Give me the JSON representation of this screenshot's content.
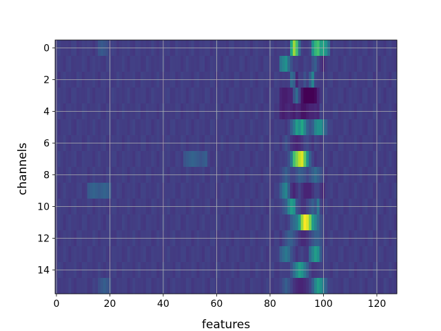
{
  "chart_data": {
    "type": "heatmap",
    "xlabel": "features",
    "ylabel": "channels",
    "n_features": 128,
    "n_channels": 16,
    "xlim": [
      -0.5,
      127.5
    ],
    "ylim": [
      15.5,
      -0.5
    ],
    "x_ticks": [
      0,
      20,
      40,
      60,
      80,
      100,
      120
    ],
    "y_ticks": [
      0,
      2,
      4,
      6,
      8,
      10,
      12,
      14
    ],
    "grid": true,
    "colormap": "viridis",
    "value_range": [
      0,
      1
    ],
    "background_value": 0.18,
    "colormap_stops": [
      "#440154",
      "#482475",
      "#414487",
      "#355f8d",
      "#2a788e",
      "#21918c",
      "#22a884",
      "#44bf70",
      "#7ad151",
      "#bddf26",
      "#fde725"
    ],
    "hotspots": [
      {
        "channel": 0,
        "features": [
          88,
          89,
          90,
          91
        ],
        "values": [
          0.6,
          0.85,
          0.7,
          0.35
        ]
      },
      {
        "channel": 0,
        "features": [
          96,
          97,
          98,
          99,
          100,
          101,
          102
        ],
        "values": [
          0.5,
          0.65,
          0.7,
          0.55,
          0.6,
          0.5,
          0.35
        ]
      },
      {
        "channel": 1,
        "features": [
          84,
          85,
          86,
          87,
          88,
          96,
          97,
          98,
          99,
          100
        ],
        "values": [
          0.4,
          0.45,
          0.5,
          0.35,
          0.25,
          0.25,
          0.3,
          0.2,
          0.15,
          0.1
        ]
      },
      {
        "channel": 2,
        "features": [
          88,
          89,
          90,
          93,
          95,
          96,
          97
        ],
        "values": [
          0.35,
          0.3,
          0.1,
          0.25,
          0.3,
          0.45,
          0.2
        ]
      },
      {
        "channel": 3,
        "features": [
          84,
          85,
          86,
          87,
          88,
          89,
          90,
          91,
          92,
          93,
          94,
          95,
          96,
          97,
          98
        ],
        "values": [
          0.1,
          0.08,
          0.08,
          0.1,
          0.1,
          0.25,
          0.35,
          0.2,
          0.05,
          0.0,
          0.0,
          0.0,
          0.0,
          0.02,
          0.1
        ]
      },
      {
        "channel": 4,
        "features": [
          84,
          85,
          86,
          87,
          88,
          89,
          90,
          91,
          92,
          93,
          94,
          95,
          96,
          97,
          98
        ],
        "values": [
          0.1,
          0.08,
          0.1,
          0.12,
          0.1,
          0.08,
          0.12,
          0.1,
          0.05,
          0.05,
          0.08,
          0.1,
          0.1,
          0.12,
          0.1
        ]
      },
      {
        "channel": 5,
        "features": [
          87,
          88,
          89,
          90,
          91,
          92,
          93,
          94,
          95,
          96,
          97,
          98,
          99,
          100,
          101,
          102
        ],
        "values": [
          0.2,
          0.3,
          0.4,
          0.55,
          0.5,
          0.6,
          0.45,
          0.3,
          0.25,
          0.3,
          0.45,
          0.5,
          0.5,
          0.4,
          0.3,
          0.2
        ]
      },
      {
        "channel": 6,
        "features": [
          85,
          86,
          87,
          88,
          89,
          90,
          91,
          92,
          93,
          94,
          95,
          96,
          97
        ],
        "values": [
          0.2,
          0.25,
          0.2,
          0.15,
          0.12,
          0.1,
          0.12,
          0.15,
          0.2,
          0.22,
          0.18,
          0.15,
          0.2
        ]
      },
      {
        "channel": 7,
        "features": [
          87,
          88,
          89,
          90,
          91,
          92,
          93,
          94,
          95,
          96,
          97
        ],
        "values": [
          0.25,
          0.4,
          0.7,
          0.8,
          0.9,
          0.95,
          0.75,
          0.5,
          0.3,
          0.2,
          0.15
        ]
      },
      {
        "channel": 8,
        "features": [
          84,
          85,
          86,
          87,
          88,
          89,
          90,
          91,
          92,
          93,
          94,
          95,
          96,
          97,
          98,
          99,
          100
        ],
        "values": [
          0.2,
          0.25,
          0.3,
          0.25,
          0.2,
          0.2,
          0.25,
          0.3,
          0.28,
          0.25,
          0.2,
          0.25,
          0.3,
          0.35,
          0.3,
          0.25,
          0.2
        ]
      },
      {
        "channel": 9,
        "features": [
          84,
          85,
          86,
          87,
          88,
          89,
          90,
          91,
          92,
          93,
          94,
          95,
          96,
          97,
          98,
          99,
          100
        ],
        "values": [
          0.3,
          0.4,
          0.45,
          0.3,
          0.15,
          0.1,
          0.15,
          0.2,
          0.15,
          0.1,
          0.1,
          0.1,
          0.15,
          0.2,
          0.2,
          0.15,
          0.1
        ]
      },
      {
        "channel": 10,
        "features": [
          84,
          85,
          86,
          87,
          88,
          89,
          90,
          91,
          92,
          93,
          94,
          95,
          96,
          97,
          98,
          99,
          100
        ],
        "values": [
          0.2,
          0.25,
          0.3,
          0.45,
          0.55,
          0.5,
          0.25,
          0.2,
          0.15,
          0.15,
          0.2,
          0.25,
          0.3,
          0.25,
          0.4,
          0.2,
          0.15
        ]
      },
      {
        "channel": 11,
        "features": [
          87,
          88,
          89,
          90,
          91,
          92,
          93,
          94,
          95,
          96,
          97,
          98,
          99,
          100
        ],
        "values": [
          0.2,
          0.3,
          0.35,
          0.4,
          0.55,
          0.85,
          1.0,
          0.95,
          0.8,
          0.55,
          0.45,
          0.35,
          0.25,
          0.2
        ]
      },
      {
        "channel": 12,
        "features": [
          84,
          85,
          86,
          87,
          88,
          89,
          90,
          91,
          92,
          93,
          94,
          95,
          96,
          97,
          98,
          99,
          100
        ],
        "values": [
          0.15,
          0.2,
          0.25,
          0.3,
          0.3,
          0.25,
          0.2,
          0.15,
          0.12,
          0.12,
          0.15,
          0.2,
          0.25,
          0.3,
          0.3,
          0.25,
          0.2
        ]
      },
      {
        "channel": 13,
        "features": [
          84,
          85,
          86,
          87,
          88,
          89,
          90,
          95,
          96,
          97,
          98,
          99
        ],
        "values": [
          0.3,
          0.35,
          0.4,
          0.35,
          0.25,
          0.2,
          0.15,
          0.35,
          0.45,
          0.55,
          0.5,
          0.3
        ]
      },
      {
        "channel": 14,
        "features": [
          88,
          89,
          90,
          91,
          92,
          93,
          94,
          95,
          96
        ],
        "values": [
          0.25,
          0.35,
          0.45,
          0.55,
          0.5,
          0.4,
          0.3,
          0.2,
          0.15
        ]
      },
      {
        "channel": 15,
        "features": [
          84,
          85,
          86,
          87,
          88,
          89,
          90,
          91,
          92,
          93,
          94,
          95,
          96,
          97,
          98,
          99,
          100,
          101,
          102
        ],
        "values": [
          0.2,
          0.25,
          0.3,
          0.25,
          0.2,
          0.15,
          0.12,
          0.1,
          0.1,
          0.12,
          0.15,
          0.2,
          0.3,
          0.45,
          0.55,
          0.5,
          0.4,
          0.3,
          0.2
        ]
      },
      {
        "channel": 9,
        "features": [
          12,
          13,
          14,
          15,
          16,
          17,
          18,
          19,
          20
        ],
        "values": [
          0.28,
          0.3,
          0.32,
          0.3,
          0.28,
          0.3,
          0.32,
          0.3,
          0.28
        ]
      },
      {
        "channel": 7,
        "features": [
          48,
          49,
          50,
          51,
          52,
          53,
          54,
          55,
          56
        ],
        "values": [
          0.26,
          0.28,
          0.3,
          0.32,
          0.3,
          0.28,
          0.26,
          0.28,
          0.3
        ]
      },
      {
        "channel": 0,
        "features": [
          16,
          17,
          18,
          19
        ],
        "values": [
          0.26,
          0.28,
          0.26,
          0.24
        ]
      },
      {
        "channel": 15,
        "features": [
          16,
          17,
          18,
          19,
          20
        ],
        "values": [
          0.24,
          0.27,
          0.3,
          0.27,
          0.24
        ]
      }
    ]
  }
}
